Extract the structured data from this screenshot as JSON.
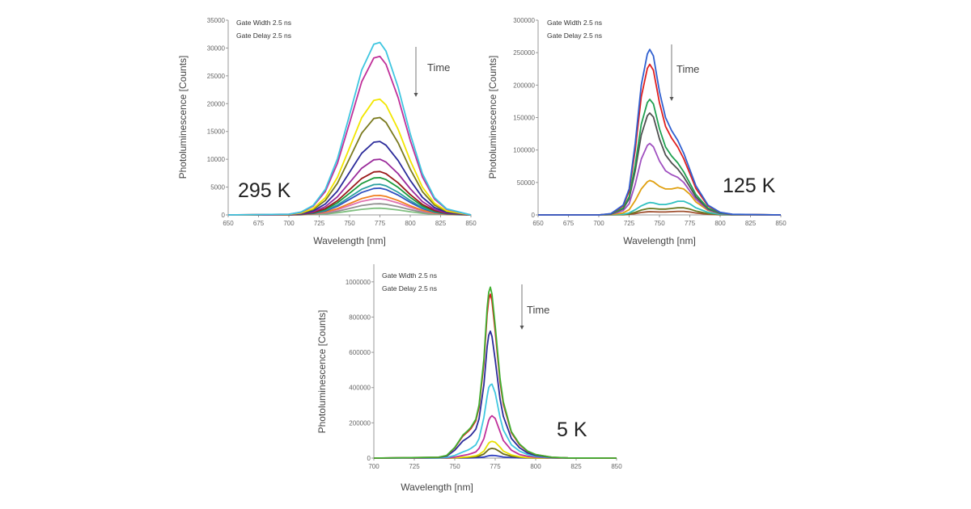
{
  "chart_data": [
    {
      "type": "line",
      "xlabel": "Wavelength [nm]",
      "ylabel": "Photoluminescence [Counts]",
      "xlim": [
        650,
        850
      ],
      "ylim": [
        0,
        35000
      ],
      "xticks": [
        650,
        675,
        700,
        725,
        750,
        775,
        800,
        825,
        850
      ],
      "yticks": [
        0,
        5000,
        10000,
        15000,
        20000,
        25000,
        30000,
        35000
      ],
      "grid": false,
      "annotations": {
        "gate_width": "Gate Width 2.5 ns",
        "gate_delay": "Gate Delay 2.5 ns",
        "time": "Time",
        "temperature": "295 K"
      },
      "x": [
        650,
        700,
        710,
        720,
        730,
        740,
        750,
        760,
        770,
        775,
        780,
        790,
        800,
        810,
        820,
        830,
        850
      ],
      "series": [
        {
          "color": "#3ec6e0",
          "values": [
            0,
            124,
            527,
            1705,
            4588,
            10075,
            17980,
            26040,
            30690,
            31000,
            29450,
            22940,
            14570,
            7440,
            3100,
            1085,
            0
          ]
        },
        {
          "color": "#c0309a",
          "values": [
            0,
            114,
            485,
            1568,
            4218,
            9263,
            16530,
            23940,
            28215,
            28500,
            27075,
            21090,
            13395,
            6840,
            2850,
            998,
            0
          ]
        },
        {
          "color": "#f2e600",
          "values": [
            0,
            83,
            354,
            1144,
            3078,
            6760,
            12064,
            17472,
            20592,
            20800,
            19760,
            15392,
            9776,
            4992,
            2080,
            728,
            0
          ]
        },
        {
          "color": "#7a7a1e",
          "values": [
            0,
            70,
            298,
            963,
            2590,
            5688,
            10150,
            14700,
            17325,
            17500,
            16625,
            12950,
            8225,
            4200,
            1750,
            613,
            0
          ]
        },
        {
          "color": "#2a2a9a",
          "values": [
            0,
            53,
            224,
            726,
            1954,
            4290,
            7656,
            11088,
            13068,
            13200,
            12540,
            9768,
            6204,
            3168,
            1320,
            462,
            0
          ]
        },
        {
          "color": "#9a2a9a",
          "values": [
            0,
            40,
            170,
            550,
            1480,
            3250,
            5800,
            8400,
            9900,
            10000,
            9500,
            7400,
            4700,
            2400,
            1000,
            350,
            0
          ]
        },
        {
          "color": "#9a1a1a",
          "values": [
            0,
            31,
            133,
            429,
            1154,
            2535,
            4524,
            6552,
            7722,
            7800,
            7410,
            5772,
            3666,
            1872,
            780,
            273,
            0
          ]
        },
        {
          "color": "#1a9a3a",
          "values": [
            0,
            27,
            114,
            369,
            992,
            2178,
            3886,
            5628,
            6633,
            6700,
            6365,
            4958,
            3149,
            1608,
            670,
            235,
            0
          ]
        },
        {
          "color": "#2aa0a0",
          "values": [
            0,
            22,
            94,
            303,
            814,
            1788,
            3190,
            4620,
            5445,
            5500,
            5225,
            4070,
            2585,
            1320,
            550,
            193,
            0
          ]
        },
        {
          "color": "#3050c0",
          "values": [
            0,
            19,
            82,
            264,
            710,
            1560,
            2784,
            4032,
            4752,
            4800,
            4560,
            3552,
            2256,
            1152,
            480,
            168,
            0
          ]
        },
        {
          "color": "#f08020",
          "values": [
            0,
            14,
            60,
            193,
            518,
            1138,
            2030,
            2940,
            3465,
            3500,
            3325,
            2590,
            1645,
            840,
            350,
            123,
            0
          ]
        },
        {
          "color": "#e070b0",
          "values": [
            0,
            12,
            49,
            160,
            429,
            943,
            1682,
            2436,
            2871,
            2900,
            2755,
            2146,
            1363,
            696,
            290,
            102,
            0
          ]
        },
        {
          "color": "#909090",
          "values": [
            0,
            8,
            34,
            110,
            296,
            650,
            1160,
            1680,
            1980,
            2000,
            1900,
            1480,
            940,
            480,
            200,
            70,
            0
          ]
        },
        {
          "color": "#80c080",
          "values": [
            0,
            5,
            20,
            66,
            178,
            390,
            696,
            1008,
            1188,
            1200,
            1140,
            888,
            564,
            288,
            120,
            42,
            0
          ]
        }
      ]
    },
    {
      "type": "line",
      "xlabel": "Wavelength [nm]",
      "ylabel": "Photoluminescence [Counts]",
      "xlim": [
        650,
        850
      ],
      "ylim": [
        0,
        300000
      ],
      "xticks": [
        650,
        675,
        700,
        725,
        750,
        775,
        800,
        825,
        850
      ],
      "yticks": [
        0,
        50000,
        100000,
        150000,
        200000,
        250000,
        300000
      ],
      "grid": false,
      "annotations": {
        "gate_width": "Gate Width 2.5 ns",
        "gate_delay": "Gate Delay 2.5 ns",
        "time": "Time",
        "temperature": "125 K"
      },
      "x": [
        650,
        700,
        710,
        720,
        725,
        730,
        735,
        740,
        742,
        745,
        750,
        755,
        760,
        765,
        770,
        775,
        780,
        790,
        800,
        810,
        850
      ],
      "series": [
        {
          "color": "#3060d0",
          "values": [
            0,
            0,
            2000,
            15000,
            40000,
            110000,
            200000,
            248000,
            255000,
            245000,
            190000,
            150000,
            130000,
            115000,
            95000,
            70000,
            45000,
            15000,
            4000,
            1000,
            0
          ]
        },
        {
          "color": "#e02020",
          "values": [
            0,
            0,
            1856,
            13688,
            36424,
            99992,
            181888,
            225736,
            232000,
            222952,
            172840,
            136416,
            118320,
            104632,
            86536,
            63800,
            40832,
            13688,
            3712,
            928,
            0
          ]
        },
        {
          "color": "#20a050",
          "values": [
            0,
            0,
            1424,
            10502,
            27946,
            76718,
            139552,
            173194,
            178000,
            171058,
            132610,
            104664,
            90780,
            80278,
            66394,
            48950,
            31328,
            10502,
            2848,
            712,
            0
          ]
        },
        {
          "color": "#505050",
          "values": [
            0,
            0,
            1256,
            9263,
            24649,
            67667,
            123088,
            152761,
            157000,
            150877,
            116965,
            92316,
            80070,
            70807,
            58561,
            43175,
            27632,
            9263,
            2512,
            628,
            0
          ]
        },
        {
          "color": "#a050c0",
          "values": [
            0,
            0,
            900,
            6500,
            17000,
            47000,
            86000,
            107000,
            110000,
            105000,
            83000,
            68000,
            62000,
            58000,
            50000,
            37000,
            24000,
            8000,
            2000,
            500,
            0
          ]
        },
        {
          "color": "#e0a010",
          "values": [
            0,
            0,
            500,
            3000,
            8000,
            22000,
            40000,
            51000,
            53000,
            51000,
            44000,
            40000,
            40000,
            42000,
            40000,
            32000,
            20000,
            7000,
            2000,
            500,
            0
          ]
        },
        {
          "color": "#30c0c0",
          "values": [
            0,
            0,
            200,
            1000,
            3000,
            8000,
            14000,
            18000,
            19000,
            18500,
            16000,
            16000,
            18000,
            21000,
            21000,
            17000,
            11000,
            4000,
            1000,
            300,
            0
          ]
        },
        {
          "color": "#6a7a20",
          "values": [
            0,
            0,
            100,
            600,
            1500,
            4000,
            7500,
            9500,
            10000,
            9800,
            9000,
            9000,
            10000,
            11000,
            11000,
            9000,
            6000,
            2000,
            500,
            100,
            0
          ]
        },
        {
          "color": "#a05030",
          "values": [
            0,
            0,
            50,
            300,
            750,
            2000,
            3750,
            4750,
            5000,
            4900,
            4500,
            4500,
            5000,
            5500,
            5500,
            4500,
            3000,
            1000,
            250,
            50,
            0
          ]
        }
      ]
    },
    {
      "type": "line",
      "xlabel": "Wavelength [nm]",
      "ylabel": "Photoluminescence [Counts]",
      "xlim": [
        700,
        850
      ],
      "ylim": [
        0,
        1100000
      ],
      "xticks": [
        700,
        725,
        750,
        775,
        800,
        825,
        850
      ],
      "yticks": [
        0,
        200000,
        400000,
        600000,
        800000,
        1000000
      ],
      "grid": false,
      "annotations": {
        "gate_width": "Gate Width 2.5 ns",
        "gate_delay": "Gate Delay 2.5 ns",
        "time": "Time",
        "temperature": "5 K"
      },
      "x": [
        700,
        740,
        745,
        750,
        755,
        758,
        760,
        763,
        765,
        768,
        770,
        771,
        772,
        773,
        775,
        778,
        780,
        785,
        790,
        795,
        800,
        810,
        820,
        850
      ],
      "series": [
        {
          "color": "#40b030",
          "values": [
            0,
            5000,
            15000,
            60000,
            130000,
            155000,
            175000,
            220000,
            300000,
            560000,
            850000,
            940000,
            970000,
            930000,
            750000,
            450000,
            320000,
            150000,
            80000,
            40000,
            20000,
            5000,
            1000,
            0
          ]
        },
        {
          "color": "#e02020",
          "values": [
            0,
            4650,
            13950,
            57660,
            124620,
            148800,
            167400,
            211110,
            287370,
            536610,
            814680,
            901170,
            930000,
            891870,
            718890,
            431520,
            306900,
            144150,
            76260,
            38130,
            19530,
            4650,
            930,
            0
          ]
        },
        {
          "color": "#2a2a9a",
          "values": [
            0,
            3600,
            10800,
            44640,
            96480,
            115200,
            129600,
            163440,
            222480,
            415440,
            630720,
            697680,
            720000,
            690480,
            556560,
            334080,
            237600,
            111600,
            59040,
            29520,
            15120,
            3600,
            720,
            0
          ]
        },
        {
          "color": "#40c8e0",
          "values": [
            0,
            1000,
            4000,
            15000,
            35000,
            45000,
            55000,
            75000,
            110000,
            230000,
            350000,
            400000,
            415000,
            420000,
            370000,
            230000,
            160000,
            75000,
            40000,
            20000,
            10000,
            2000,
            500,
            0
          ]
        },
        {
          "color": "#c0309a",
          "values": [
            0,
            500,
            1500,
            6000,
            15000,
            20000,
            25000,
            35000,
            55000,
            110000,
            180000,
            215000,
            232000,
            240000,
            225000,
            150000,
            100000,
            45000,
            20000,
            10000,
            5000,
            1000,
            0,
            0
          ]
        },
        {
          "color": "#e8e000",
          "values": [
            0,
            0,
            500,
            2000,
            5000,
            7000,
            9000,
            13000,
            20000,
            40000,
            70000,
            85000,
            92000,
            95000,
            90000,
            62000,
            40000,
            18000,
            8000,
            3000,
            1000,
            0,
            0,
            0
          ]
        },
        {
          "color": "#6a6a1a",
          "values": [
            0,
            0,
            290,
            1160,
            2900,
            4060,
            5220,
            7540,
            11600,
            23200,
            40600,
            49300,
            53360,
            55000,
            52200,
            35960,
            23200,
            10440,
            4640,
            1740,
            580,
            0,
            0,
            0
          ]
        },
        {
          "color": "#3040c0",
          "values": [
            0,
            0,
            100,
            300,
            800,
            1100,
            1400,
            2000,
            3000,
            6000,
            11000,
            13500,
            14600,
            15000,
            14200,
            9800,
            6300,
            2800,
            1300,
            500,
            200,
            0,
            0,
            0
          ]
        }
      ]
    }
  ]
}
